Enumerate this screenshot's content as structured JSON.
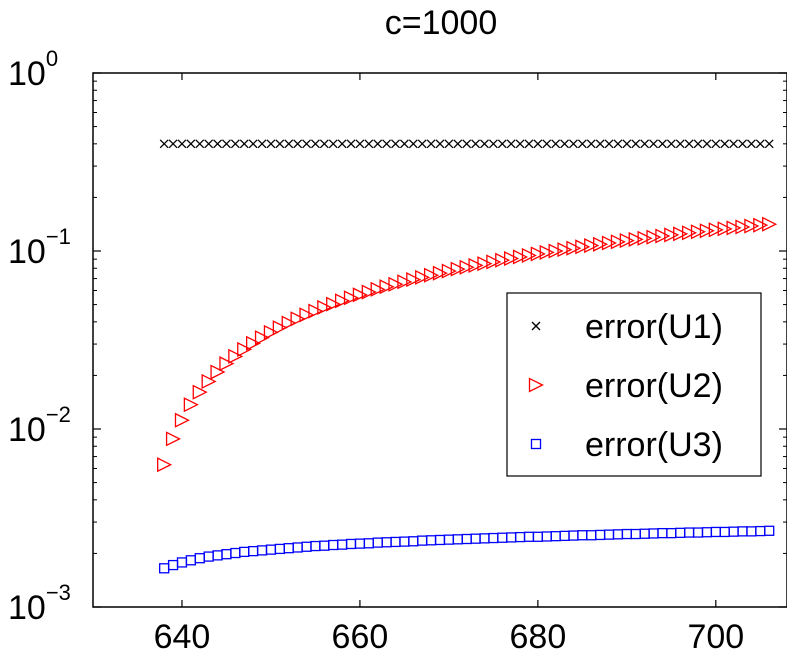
{
  "chart_data": {
    "type": "scatter",
    "title": "c=1000",
    "xlabel": "",
    "ylabel": "",
    "xlim": [
      630,
      708
    ],
    "ylim": [
      0.001,
      1
    ],
    "yscale": "log",
    "x_ticks": [
      640,
      660,
      680,
      700
    ],
    "y_ticks": [
      {
        "value": 1,
        "base": "10",
        "exp": "0"
      },
      {
        "value": 0.1,
        "base": "10",
        "exp": "−1"
      },
      {
        "value": 0.01,
        "base": "10",
        "exp": "−2"
      },
      {
        "value": 0.001,
        "base": "10",
        "exp": "−3"
      }
    ],
    "grid": false,
    "legend_position": "center-right",
    "x": [
      638,
      639,
      640,
      641,
      642,
      643,
      644,
      645,
      646,
      647,
      648,
      649,
      650,
      651,
      652,
      653,
      654,
      655,
      656,
      657,
      658,
      659,
      660,
      661,
      662,
      663,
      664,
      665,
      666,
      667,
      668,
      669,
      670,
      671,
      672,
      673,
      674,
      675,
      676,
      677,
      678,
      679,
      680,
      681,
      682,
      683,
      684,
      685,
      686,
      687,
      688,
      689,
      690,
      691,
      692,
      693,
      694,
      695,
      696,
      697,
      698,
      699,
      700,
      701,
      702,
      703,
      704,
      705,
      706
    ],
    "series": [
      {
        "name": "error(U1)",
        "marker": "x",
        "color": "#000000",
        "values": [
          0.4,
          0.4,
          0.4,
          0.4,
          0.4,
          0.4,
          0.4,
          0.4,
          0.4,
          0.4,
          0.4,
          0.4,
          0.4,
          0.4,
          0.4,
          0.4,
          0.4,
          0.4,
          0.4,
          0.4,
          0.4,
          0.4,
          0.4,
          0.4,
          0.4,
          0.4,
          0.4,
          0.4,
          0.4,
          0.4,
          0.4,
          0.4,
          0.4,
          0.4,
          0.4,
          0.4,
          0.4,
          0.4,
          0.4,
          0.4,
          0.4,
          0.4,
          0.4,
          0.4,
          0.4,
          0.4,
          0.4,
          0.4,
          0.4,
          0.4,
          0.4,
          0.4,
          0.4,
          0.4,
          0.4,
          0.4,
          0.4,
          0.4,
          0.4,
          0.4,
          0.4,
          0.4,
          0.4,
          0.4,
          0.4,
          0.4,
          0.4,
          0.4,
          0.4
        ]
      },
      {
        "name": "error(U2)",
        "marker": "triangle-right",
        "color": "#ff0000",
        "values": [
          0.0063,
          0.0088,
          0.0112,
          0.0137,
          0.0161,
          0.0185,
          0.0209,
          0.0233,
          0.0256,
          0.028,
          0.0303,
          0.0326,
          0.0349,
          0.0371,
          0.0394,
          0.0416,
          0.0438,
          0.046,
          0.0482,
          0.0503,
          0.0525,
          0.0546,
          0.0567,
          0.0588,
          0.0609,
          0.063,
          0.065,
          0.0671,
          0.0691,
          0.0711,
          0.0731,
          0.0751,
          0.0771,
          0.0791,
          0.081,
          0.083,
          0.0849,
          0.0868,
          0.0888,
          0.0907,
          0.0926,
          0.0944,
          0.0963,
          0.0982,
          0.1,
          0.1018,
          0.1037,
          0.1055,
          0.1073,
          0.1091,
          0.1109,
          0.1126,
          0.1144,
          0.1162,
          0.1179,
          0.1196,
          0.1214,
          0.1231,
          0.1248,
          0.1265,
          0.1282,
          0.1299,
          0.1315,
          0.1332,
          0.1348,
          0.1365,
          0.1381,
          0.1397,
          0.1414
        ]
      },
      {
        "name": "error(U3)",
        "marker": "square",
        "color": "#0000ff",
        "values": [
          0.00165,
          0.00172,
          0.00178,
          0.00183,
          0.00188,
          0.00192,
          0.00195,
          0.00198,
          0.00201,
          0.00204,
          0.00206,
          0.00208,
          0.0021,
          0.00212,
          0.00214,
          0.00216,
          0.00218,
          0.0022,
          0.00221,
          0.00223,
          0.00224,
          0.00226,
          0.00227,
          0.00228,
          0.0023,
          0.00231,
          0.00232,
          0.00233,
          0.00234,
          0.00236,
          0.00237,
          0.00238,
          0.00239,
          0.0024,
          0.00241,
          0.00242,
          0.00243,
          0.00244,
          0.00245,
          0.00246,
          0.00247,
          0.00248,
          0.00248,
          0.00249,
          0.0025,
          0.00251,
          0.00252,
          0.00253,
          0.00253,
          0.00254,
          0.00255,
          0.00256,
          0.00257,
          0.00257,
          0.00258,
          0.00259,
          0.0026,
          0.0026,
          0.00261,
          0.00262,
          0.00262,
          0.00263,
          0.00264,
          0.00264,
          0.00265,
          0.00266,
          0.00266,
          0.00267,
          0.00268
        ]
      }
    ]
  }
}
